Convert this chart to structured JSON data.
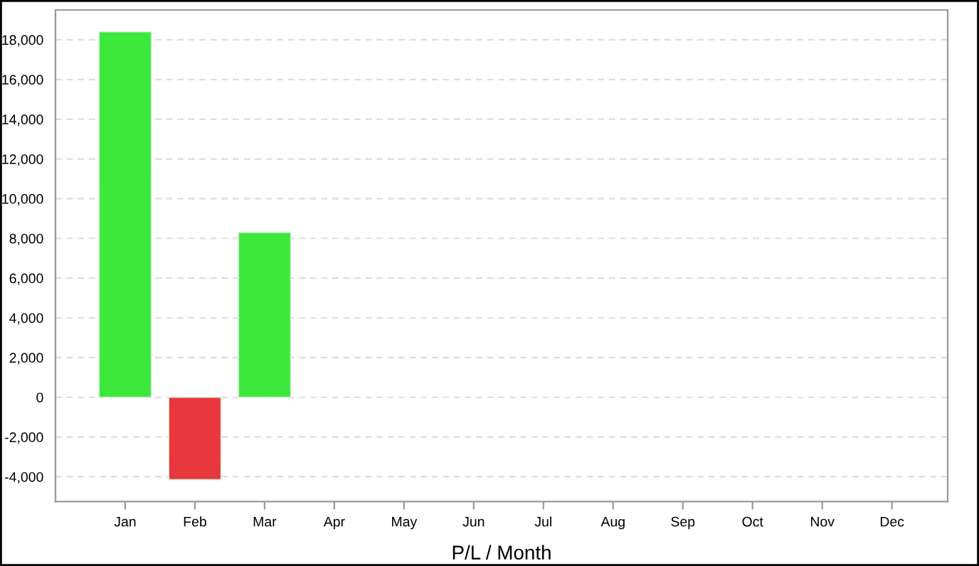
{
  "chart_data": {
    "type": "bar",
    "xlabel": "P/L / Month",
    "categories": [
      "Jan",
      "Feb",
      "Mar",
      "Apr",
      "May",
      "Jun",
      "Jul",
      "Aug",
      "Sep",
      "Oct",
      "Nov",
      "Dec"
    ],
    "values": [
      18400,
      -4150,
      8300,
      null,
      null,
      null,
      null,
      null,
      null,
      null,
      null,
      null
    ],
    "colors": [
      "#3de83d",
      "#e8383d",
      "#3de83d",
      null,
      null,
      null,
      null,
      null,
      null,
      null,
      null,
      null
    ],
    "ylim": [
      -5250,
      19500
    ],
    "yticks": [
      {
        "value": -4000,
        "label": "-4,000"
      },
      {
        "value": -2000,
        "label": "-2,000"
      },
      0,
      {
        "value": 2000,
        "label": "2,000"
      },
      {
        "value": 4000,
        "label": "4,000"
      },
      {
        "value": 6000,
        "label": "6,000"
      },
      {
        "value": 8000,
        "label": "8,000"
      },
      {
        "value": 10000,
        "label": "10,000"
      },
      {
        "value": 12000,
        "label": "12,000"
      },
      {
        "value": 14000,
        "label": "14,000"
      },
      {
        "value": 16000,
        "label": "16,000"
      },
      {
        "value": 18000,
        "label": "18,000"
      }
    ],
    "grid": "y",
    "legend": false
  }
}
